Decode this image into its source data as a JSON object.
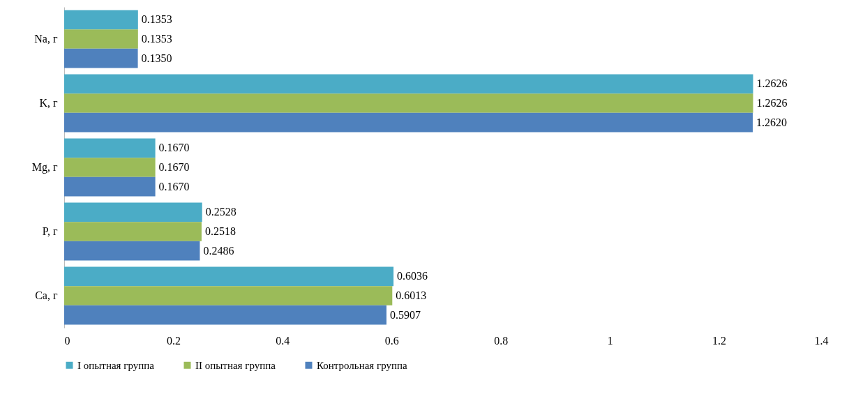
{
  "chart_data": {
    "type": "bar",
    "orientation": "horizontal",
    "categories": [
      "Na, г",
      "K, г",
      "Mg, г",
      "P, г",
      "Ca, г"
    ],
    "series": [
      {
        "name": "I опытная группа",
        "color": "#4bacc6",
        "values": [
          0.1353,
          1.2626,
          0.167,
          0.2528,
          0.6036
        ],
        "value_labels": [
          "0.1353",
          "1.2626",
          "0.1670",
          "0.2528",
          "0.6036"
        ]
      },
      {
        "name": "II опытная группа",
        "color": "#9bbb59",
        "values": [
          0.1353,
          1.2626,
          0.167,
          0.2518,
          0.6013
        ],
        "value_labels": [
          "0.1353",
          "1.2626",
          "0.1670",
          "0.2518",
          "0.6013"
        ]
      },
      {
        "name": "Контрольная группа",
        "color": "#4f81bd",
        "values": [
          0.135,
          1.262,
          0.167,
          0.2486,
          0.5907
        ],
        "value_labels": [
          "0.1350",
          "1.2620",
          "0.1670",
          "0.2486",
          "0.5907"
        ]
      }
    ],
    "xlim": [
      0,
      1.4
    ],
    "xticks": [
      0,
      0.2,
      0.4,
      0.6,
      0.8,
      1,
      1.2,
      1.4
    ],
    "legend": "bottom",
    "grid": false
  }
}
